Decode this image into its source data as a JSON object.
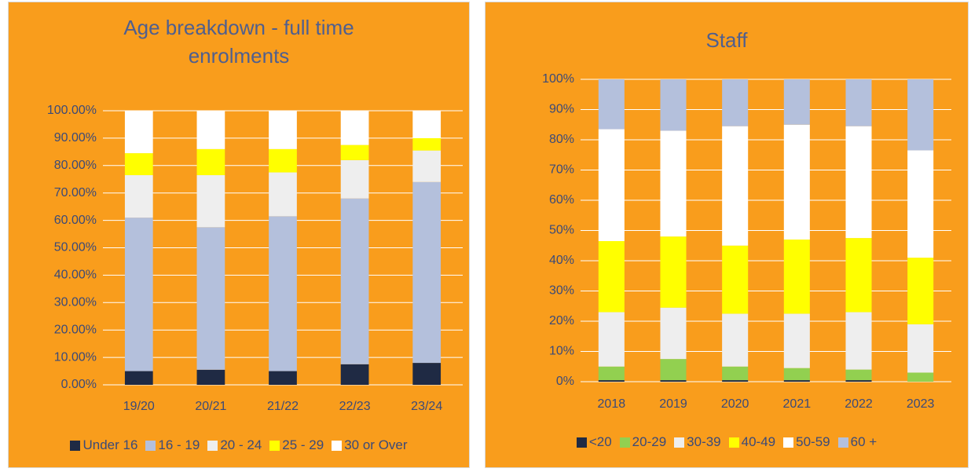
{
  "chart_data": [
    {
      "type": "stacked_bar",
      "title": "Age breakdown - full time enrolments",
      "categories": [
        "19/20",
        "20/21",
        "21/22",
        "22/23",
        "23/24"
      ],
      "series": [
        {
          "name": "Under 16",
          "color": "#1f2a44",
          "values": [
            5,
            5.5,
            5,
            7.5,
            8
          ]
        },
        {
          "name": "16 - 19",
          "color": "#b4c0dc",
          "values": [
            56,
            52,
            56.5,
            60.5,
            66
          ]
        },
        {
          "name": "20 - 24",
          "color": "#eeeeee",
          "values": [
            15.5,
            19,
            16,
            14,
            11.5
          ]
        },
        {
          "name": "25 - 29",
          "color": "#ffff00",
          "values": [
            8,
            9.5,
            8.5,
            5.5,
            4.5
          ]
        },
        {
          "name": "30 or Over",
          "color": "#ffffff",
          "values": [
            15.5,
            14,
            14,
            12.5,
            10
          ]
        }
      ],
      "ylim": [
        0,
        100
      ],
      "yticks": [
        {
          "value": 0,
          "label": "0.00%"
        },
        {
          "value": 10,
          "label": "10.00%"
        },
        {
          "value": 20,
          "label": "20.00%"
        },
        {
          "value": 30,
          "label": "30.00%"
        },
        {
          "value": 40,
          "label": "40.00%"
        },
        {
          "value": 50,
          "label": "50.00%"
        },
        {
          "value": 60,
          "label": "60.00%"
        },
        {
          "value": 70,
          "label": "70.00%"
        },
        {
          "value": 80,
          "label": "80.00%"
        },
        {
          "value": 90,
          "label": "90.00%"
        },
        {
          "value": 100,
          "label": "100.00%"
        }
      ],
      "grid": true,
      "legend": "bottom"
    },
    {
      "type": "stacked_bar",
      "title": "Staff",
      "categories": [
        "2018",
        "2019",
        "2020",
        "2021",
        "2022",
        "2023"
      ],
      "series": [
        {
          "name": "<20",
          "color": "#1f2a44",
          "values": [
            0.5,
            0.5,
            0.5,
            0.5,
            0.5,
            0
          ]
        },
        {
          "name": "20-29",
          "color": "#92d050",
          "values": [
            4.5,
            7,
            4.5,
            4,
            3.5,
            3
          ]
        },
        {
          "name": "30-39",
          "color": "#eeeeee",
          "values": [
            18,
            17,
            17.5,
            18,
            19,
            16
          ]
        },
        {
          "name": "40-49",
          "color": "#ffff00",
          "values": [
            23.5,
            23.5,
            22.5,
            24.5,
            24.5,
            22
          ]
        },
        {
          "name": "50-59",
          "color": "#ffffff",
          "values": [
            37,
            35,
            39.5,
            38,
            37,
            35.5
          ]
        },
        {
          "name": "60 +",
          "color": "#b4c0dc",
          "values": [
            16.5,
            17,
            15.5,
            15,
            15.5,
            23.5
          ]
        }
      ],
      "ylim": [
        0,
        100
      ],
      "yticks": [
        {
          "value": 0,
          "label": "0%"
        },
        {
          "value": 10,
          "label": "10%"
        },
        {
          "value": 20,
          "label": "20%"
        },
        {
          "value": 30,
          "label": "30%"
        },
        {
          "value": 40,
          "label": "40%"
        },
        {
          "value": 50,
          "label": "50%"
        },
        {
          "value": 60,
          "label": "60%"
        },
        {
          "value": 70,
          "label": "70%"
        },
        {
          "value": 80,
          "label": "80%"
        },
        {
          "value": 90,
          "label": "90%"
        },
        {
          "value": 100,
          "label": "100%"
        }
      ],
      "grid": true,
      "legend": "bottom"
    }
  ]
}
